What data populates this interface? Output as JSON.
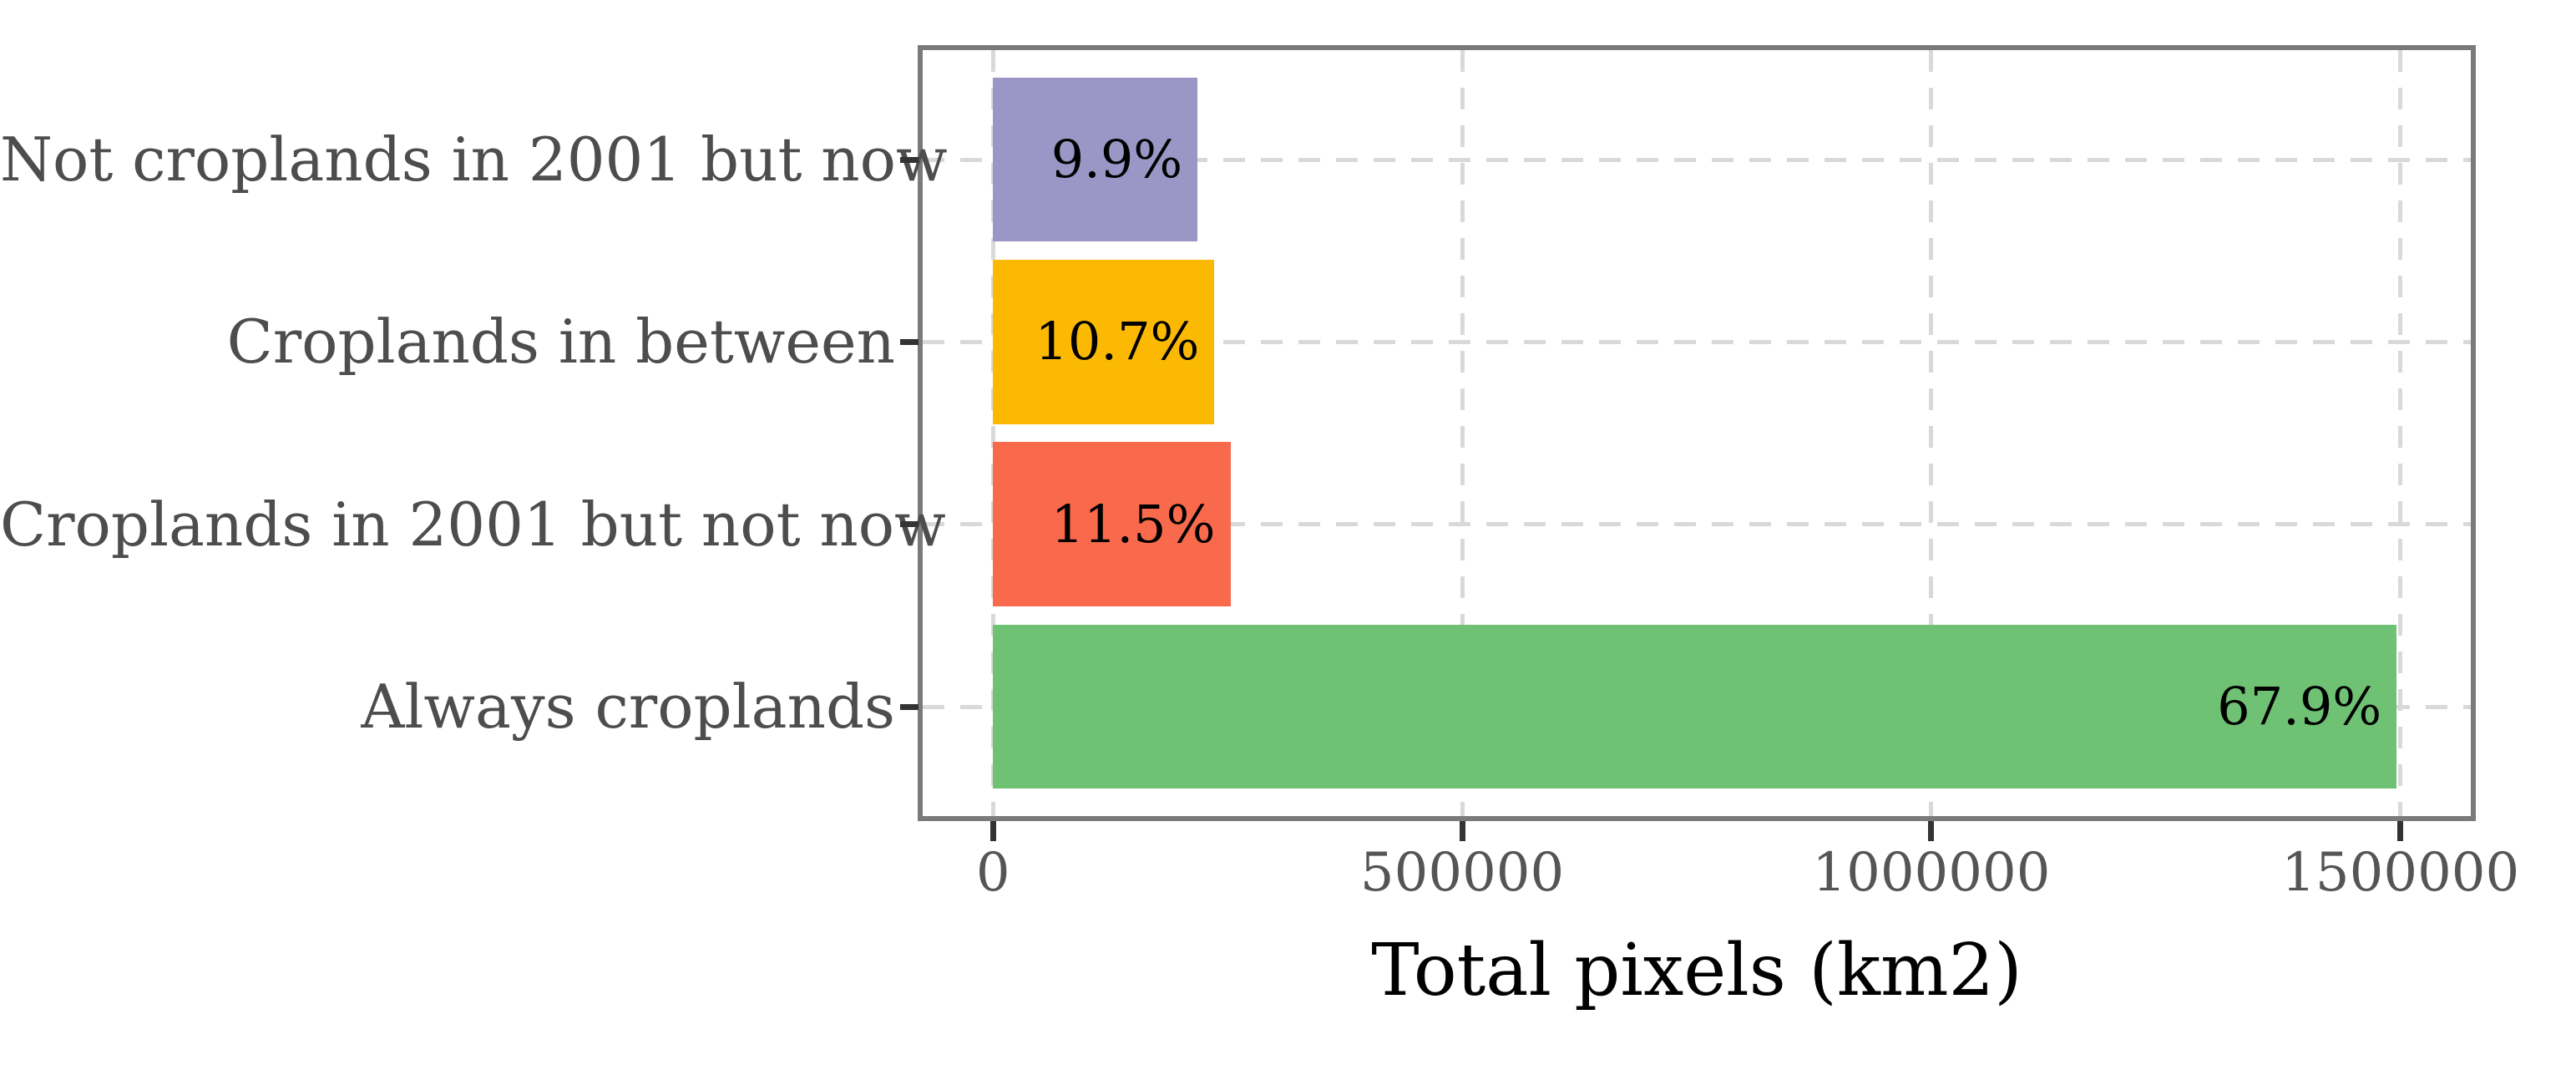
{
  "chart_data": {
    "type": "bar",
    "orientation": "horizontal",
    "title": "",
    "xlabel": "Total pixels (km2)",
    "ylabel": "",
    "categories": [
      "Not croplands in 2001 but now",
      "Croplands in between",
      "Croplands in 2001 but not now",
      "Always croplands"
    ],
    "values": [
      218000,
      236000,
      253000,
      1496000
    ],
    "value_labels": [
      "9.9%",
      "10.7%",
      "11.5%",
      "67.9%"
    ],
    "percentages": [
      9.9,
      10.7,
      11.5,
      67.9
    ],
    "bar_colors": [
      "#9a96c5",
      "#fcb904",
      "#f9694c",
      "#6fc173"
    ],
    "x_ticks": [
      0,
      500000,
      1000000,
      1500000
    ],
    "x_tick_labels": [
      "0",
      "500000",
      "1000000",
      "1500000"
    ],
    "xlim": [
      -75000,
      1575000
    ],
    "grid": {
      "style": "dashed",
      "color": "#d9d9d9",
      "axes": "both"
    },
    "legend": "none"
  },
  "style_colors": {
    "background": "#ffffff",
    "panel_border": "#7a7a7a",
    "grid": "#d9d9d9",
    "tick_mark": "#333333",
    "tick_label": "#555555",
    "category_label": "#4d4d4d",
    "value_label": "#000000",
    "axis_title": "#000000"
  }
}
